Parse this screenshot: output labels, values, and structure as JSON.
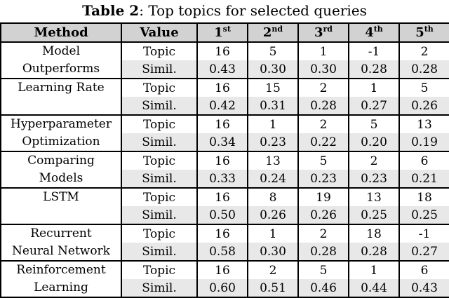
{
  "caption": {
    "label": "Table 2",
    "text": ": Top topics for selected queries"
  },
  "colors": {
    "header_bg": "#d2d2d2",
    "stripe_bg": "#e8e8e8",
    "border": "#000000",
    "text": "#000000",
    "background": "#ffffff"
  },
  "table": {
    "columns": [
      {
        "key": "method",
        "label": "Method"
      },
      {
        "key": "value",
        "label": "Value"
      },
      {
        "key": "rank-1",
        "base": "1",
        "sup": "st"
      },
      {
        "key": "rank-2",
        "base": "2",
        "sup": "nd"
      },
      {
        "key": "rank-3",
        "base": "3",
        "sup": "rd"
      },
      {
        "key": "rank-4",
        "base": "4",
        "sup": "th"
      },
      {
        "key": "rank-5",
        "base": "5",
        "sup": "th"
      }
    ],
    "row_labels": {
      "topic": "Topic",
      "simil": "Simil."
    },
    "groups": [
      {
        "method_lines": [
          "Model",
          "Outperforms"
        ],
        "topics": [
          "16",
          "5",
          "1",
          "-1",
          "2"
        ],
        "simils": [
          "0.43",
          "0.30",
          "0.30",
          "0.28",
          "0.28"
        ]
      },
      {
        "method_lines": [
          "Learning Rate"
        ],
        "topics": [
          "16",
          "15",
          "2",
          "1",
          "5"
        ],
        "simils": [
          "0.42",
          "0.31",
          "0.28",
          "0.27",
          "0.26"
        ]
      },
      {
        "method_lines": [
          "Hyperparameter",
          "Optimization"
        ],
        "topics": [
          "16",
          "1",
          "2",
          "5",
          "13"
        ],
        "simils": [
          "0.34",
          "0.23",
          "0.22",
          "0.20",
          "0.19"
        ]
      },
      {
        "method_lines": [
          "Comparing",
          "Models"
        ],
        "topics": [
          "16",
          "13",
          "5",
          "2",
          "6"
        ],
        "simils": [
          "0.33",
          "0.24",
          "0.23",
          "0.23",
          "0.21"
        ]
      },
      {
        "method_lines": [
          "LSTM"
        ],
        "topics": [
          "16",
          "8",
          "19",
          "13",
          "18"
        ],
        "simils": [
          "0.50",
          "0.26",
          "0.26",
          "0.25",
          "0.25"
        ]
      },
      {
        "method_lines": [
          "Recurrent",
          "Neural Network"
        ],
        "topics": [
          "16",
          "1",
          "2",
          "18",
          "-1"
        ],
        "simils": [
          "0.58",
          "0.30",
          "0.28",
          "0.28",
          "0.27"
        ]
      },
      {
        "method_lines": [
          "Reinforcement",
          "Learning"
        ],
        "topics": [
          "16",
          "2",
          "5",
          "1",
          "6"
        ],
        "simils": [
          "0.60",
          "0.51",
          "0.46",
          "0.44",
          "0.43"
        ]
      }
    ]
  },
  "chart_data": {
    "type": "table",
    "title": "Table 2: Top topics for selected queries",
    "headers": [
      "Method",
      "Value",
      "1st",
      "2nd",
      "3rd",
      "4th",
      "5th"
    ],
    "rows": [
      [
        "Model Outperforms",
        "Topic",
        "16",
        "5",
        "1",
        "-1",
        "2"
      ],
      [
        "Model Outperforms",
        "Simil.",
        "0.43",
        "0.30",
        "0.30",
        "0.28",
        "0.28"
      ],
      [
        "Learning Rate",
        "Topic",
        "16",
        "15",
        "2",
        "1",
        "5"
      ],
      [
        "Learning Rate",
        "Simil.",
        "0.42",
        "0.31",
        "0.28",
        "0.27",
        "0.26"
      ],
      [
        "Hyperparameter Optimization",
        "Topic",
        "16",
        "1",
        "2",
        "5",
        "13"
      ],
      [
        "Hyperparameter Optimization",
        "Simil.",
        "0.34",
        "0.23",
        "0.22",
        "0.20",
        "0.19"
      ],
      [
        "Comparing Models",
        "Topic",
        "16",
        "13",
        "5",
        "2",
        "6"
      ],
      [
        "Comparing Models",
        "Simil.",
        "0.33",
        "0.24",
        "0.23",
        "0.23",
        "0.21"
      ],
      [
        "LSTM",
        "Topic",
        "16",
        "8",
        "19",
        "13",
        "18"
      ],
      [
        "LSTM",
        "Simil.",
        "0.50",
        "0.26",
        "0.26",
        "0.25",
        "0.25"
      ],
      [
        "Recurrent Neural Network",
        "Topic",
        "16",
        "1",
        "2",
        "18",
        "-1"
      ],
      [
        "Recurrent Neural Network",
        "Simil.",
        "0.58",
        "0.30",
        "0.28",
        "0.28",
        "0.27"
      ],
      [
        "Reinforcement Learning",
        "Topic",
        "16",
        "2",
        "5",
        "1",
        "6"
      ],
      [
        "Reinforcement Learning",
        "Simil.",
        "0.60",
        "0.51",
        "0.46",
        "0.44",
        "0.43"
      ]
    ]
  }
}
